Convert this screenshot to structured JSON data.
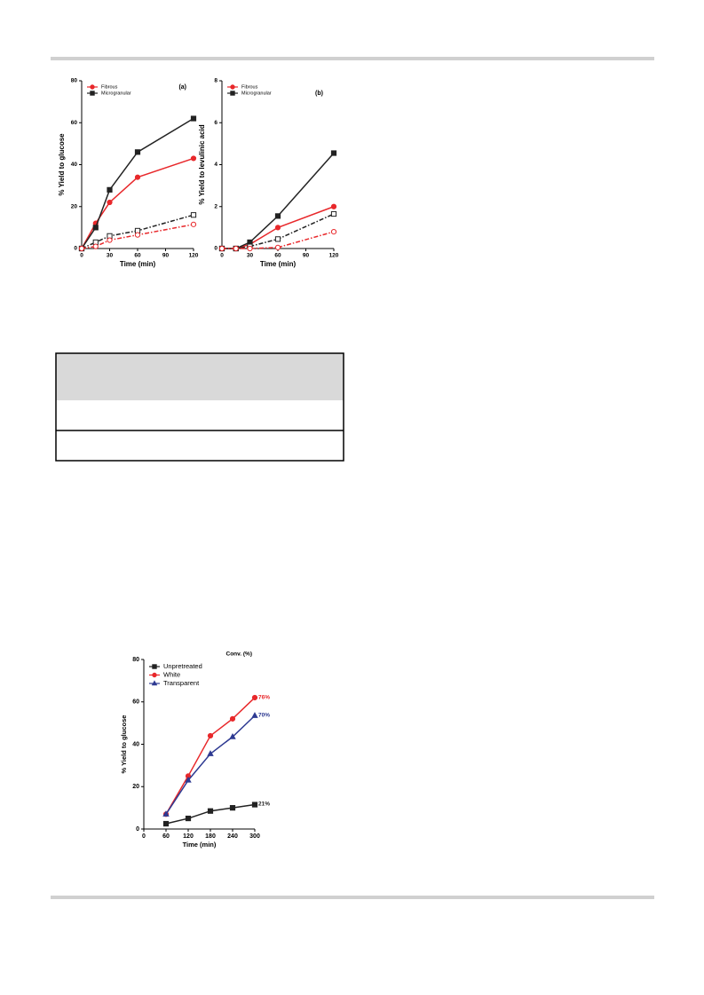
{
  "chart_data": [
    {
      "type": "line",
      "x_label": "Time (min)",
      "y_label": "% Yield to glucose",
      "x": [
        0,
        15,
        30,
        60,
        120
      ],
      "xlim": [
        0,
        120
      ],
      "xticks": [
        0,
        30,
        60,
        90,
        120
      ],
      "ylim": [
        0,
        80
      ],
      "yticks": [
        0,
        20,
        40,
        60,
        80
      ],
      "legend": "top-left",
      "annotations": [
        {
          "text": "(a)",
          "color": "#000000"
        }
      ],
      "series": [
        {
          "name": "Fibrous",
          "color": "#e8282b",
          "marker": "circle",
          "filled": true,
          "dash": "solid",
          "values": [
            0,
            12,
            22,
            34,
            43
          ]
        },
        {
          "name": "Microgranular",
          "color": "#222222",
          "marker": "square",
          "filled": true,
          "dash": "solid",
          "values": [
            0,
            10,
            28,
            46,
            62
          ]
        },
        {
          "color": "#222222",
          "marker": "square",
          "filled": false,
          "dash": "dashdot",
          "values": [
            0,
            3,
            6,
            8.5,
            16
          ]
        },
        {
          "color": "#e8282b",
          "marker": "circle",
          "filled": false,
          "dash": "dashdot",
          "values": [
            0,
            1,
            4,
            6.5,
            11.5
          ]
        }
      ]
    },
    {
      "type": "line",
      "x_label": "Time (min)",
      "y_label": "% Yield to levulinic acid",
      "x": [
        0,
        15,
        30,
        60,
        120
      ],
      "xlim": [
        0,
        120
      ],
      "xticks": [
        0,
        30,
        60,
        90,
        120
      ],
      "ylim": [
        0,
        8
      ],
      "yticks": [
        0,
        2,
        4,
        6,
        8
      ],
      "legend": "top-left",
      "annotations": [
        {
          "text": "(b)",
          "color": "#000000"
        }
      ],
      "series": [
        {
          "name": "Fibrous",
          "color": "#e8282b",
          "marker": "circle",
          "filled": true,
          "dash": "solid",
          "values": [
            0,
            0,
            0.2,
            1.0,
            2.0
          ]
        },
        {
          "name": "Microgranular",
          "color": "#222222",
          "marker": "square",
          "filled": true,
          "dash": "solid",
          "values": [
            0,
            0,
            0.3,
            1.55,
            4.55
          ]
        },
        {
          "color": "#222222",
          "marker": "square",
          "filled": false,
          "dash": "dashdot",
          "values": [
            0,
            0,
            0.1,
            0.45,
            1.65
          ]
        },
        {
          "color": "#e8282b",
          "marker": "circle",
          "filled": false,
          "dash": "dashdot",
          "values": [
            0,
            0,
            0,
            0.05,
            0.8
          ]
        }
      ]
    },
    {
      "type": "line",
      "x_label": "Time (min)",
      "y_label": "% Yield to glucose",
      "x": [
        60,
        120,
        180,
        240,
        300
      ],
      "xlim": [
        0,
        300
      ],
      "xticks": [
        0,
        60,
        120,
        180,
        240,
        300
      ],
      "ylim": [
        0,
        80
      ],
      "yticks": [
        0,
        20,
        40,
        60,
        80
      ],
      "legend": "top-left",
      "annotations": [
        {
          "text": "Conv. (%)",
          "color": "#000000"
        },
        {
          "text": "76%",
          "color": "#e8282b"
        },
        {
          "text": "70%",
          "color": "#2e3a92"
        },
        {
          "text": "21%",
          "color": "#222222"
        }
      ],
      "series": [
        {
          "name": "Unpretreated",
          "color": "#222222",
          "marker": "square",
          "filled": true,
          "dash": "solid",
          "values": [
            2.5,
            5,
            8.5,
            10,
            11.5
          ]
        },
        {
          "name": "White",
          "color": "#e8282b",
          "marker": "circle",
          "filled": true,
          "dash": "solid",
          "values": [
            7,
            25,
            44,
            52,
            62
          ]
        },
        {
          "name": "Transparent",
          "color": "#2e3a92",
          "marker": "triangle",
          "filled": true,
          "dash": "solid",
          "values": [
            7,
            23,
            35.5,
            43.5,
            53.5
          ]
        }
      ]
    }
  ]
}
